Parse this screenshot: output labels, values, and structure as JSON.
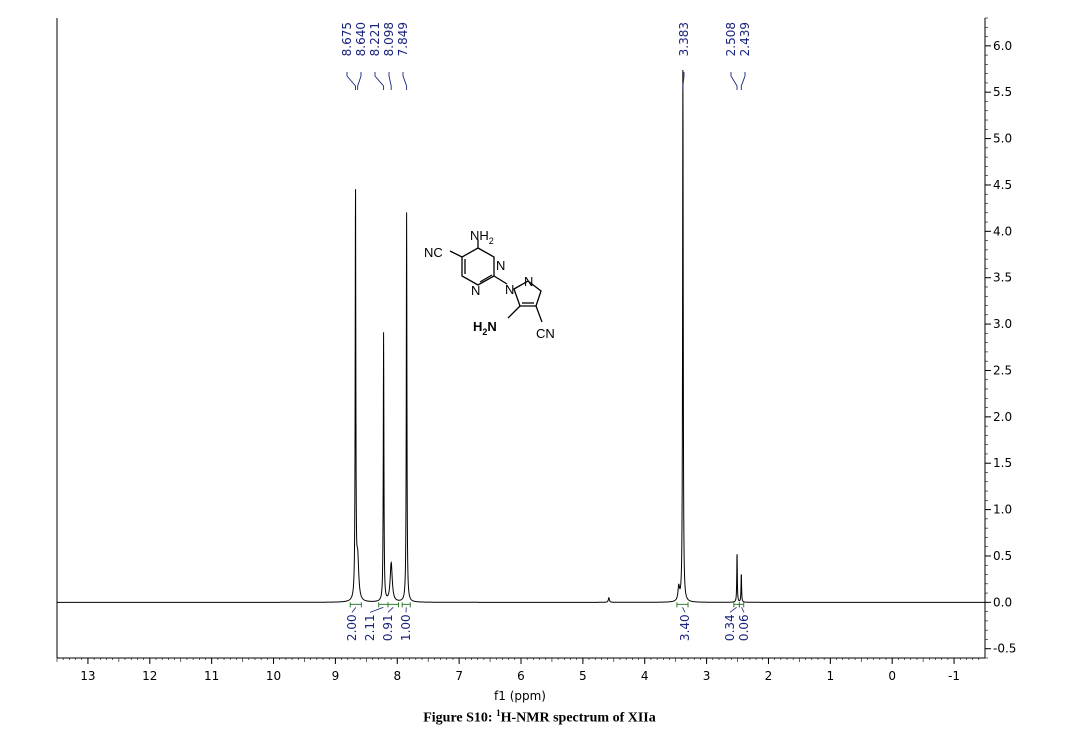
{
  "chart_data": {
    "type": "line",
    "xlim": [
      13.5,
      -1.5
    ],
    "ylim": [
      -0.6,
      6.3
    ],
    "x_ticks": [
      "13",
      "12",
      "11",
      "10",
      "9",
      "8",
      "7",
      "6",
      "5",
      "4",
      "3",
      "2",
      "1",
      "0",
      "-1"
    ],
    "y_ticks": [
      "6.0",
      "5.5",
      "5.0",
      "4.5",
      "4.0",
      "3.5",
      "3.0",
      "2.5",
      "2.0",
      "1.5",
      "1.0",
      "0.5",
      "0.0",
      "-0.5"
    ],
    "peaks": [
      {
        "shift": 8.675,
        "intensity": 4.45,
        "width": 0.006
      },
      {
        "shift": 8.64,
        "intensity": 0.45,
        "width": 0.02
      },
      {
        "shift": 8.221,
        "intensity": 2.9,
        "width": 0.006
      },
      {
        "shift": 8.098,
        "intensity": 0.42,
        "width": 0.02
      },
      {
        "shift": 7.849,
        "intensity": 4.2,
        "width": 0.006
      },
      {
        "shift": 4.58,
        "intensity": 0.05,
        "width": 0.01
      },
      {
        "shift": 3.383,
        "intensity": 5.8,
        "width": 0.006
      },
      {
        "shift": 3.45,
        "intensity": 0.15,
        "width": 0.015
      },
      {
        "shift": 2.508,
        "intensity": 0.55,
        "width": 0.005
      },
      {
        "shift": 2.439,
        "intensity": 0.32,
        "width": 0.005
      }
    ],
    "peak_labels": [
      "8.675",
      "8.640",
      "8.221",
      "8.098",
      "7.849",
      "3.383",
      "2.508",
      "2.439"
    ],
    "integrations": [
      {
        "label": "2.00",
        "from": 8.76,
        "to": 8.58
      },
      {
        "label": "2.11",
        "from": 8.3,
        "to": 8.15
      },
      {
        "label": "0.91",
        "from": 8.15,
        "to": 7.98
      },
      {
        "label": "1.00",
        "from": 7.92,
        "to": 7.79
      },
      {
        "label": "3.40",
        "from": 3.48,
        "to": 3.3
      },
      {
        "label": "0.34",
        "from": 2.56,
        "to": 2.47
      },
      {
        "label": "0.06",
        "from": 2.47,
        "to": 2.4
      }
    ],
    "xlabel": "f1 (ppm)",
    "baseline": 0.0
  },
  "structure": {
    "nh2_top": "NH",
    "nh2_top_sub": "2",
    "nc_left": "NC",
    "n_ring1": "N",
    "n_ring2": "N",
    "n_pyraz1": "N",
    "n_pyraz2": "N",
    "h2n": "H",
    "h2n_sub": "2",
    "h2n_n": "N",
    "cn_right": "CN"
  },
  "caption": {
    "prefix": "Figure S10: ",
    "sup": "1",
    "text": "H-NMR spectrum of XIIa"
  },
  "colors": {
    "spectrum": "#000000",
    "labels": "#1a237e",
    "integral_marks": "#2e7d32"
  }
}
